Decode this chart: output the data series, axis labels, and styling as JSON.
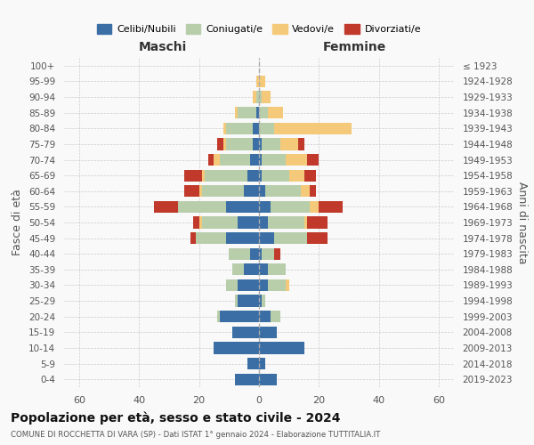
{
  "age_groups": [
    "0-4",
    "5-9",
    "10-14",
    "15-19",
    "20-24",
    "25-29",
    "30-34",
    "35-39",
    "40-44",
    "45-49",
    "50-54",
    "55-59",
    "60-64",
    "65-69",
    "70-74",
    "75-79",
    "80-84",
    "85-89",
    "90-94",
    "95-99",
    "100+"
  ],
  "birth_years": [
    "2019-2023",
    "2014-2018",
    "2009-2013",
    "2004-2008",
    "1999-2003",
    "1994-1998",
    "1989-1993",
    "1984-1988",
    "1979-1983",
    "1974-1978",
    "1969-1973",
    "1964-1968",
    "1959-1963",
    "1954-1958",
    "1949-1953",
    "1944-1948",
    "1939-1943",
    "1934-1938",
    "1929-1933",
    "1924-1928",
    "≤ 1923"
  ],
  "colors": {
    "celibe": "#3a6ea5",
    "coniugato": "#b8ceaa",
    "vedovo": "#f5c97a",
    "divorziato": "#c0392b"
  },
  "male": {
    "celibe": [
      8,
      4,
      15,
      9,
      13,
      7,
      7,
      5,
      3,
      11,
      7,
      11,
      5,
      4,
      3,
      2,
      2,
      1,
      0,
      0,
      0
    ],
    "coniugato": [
      0,
      0,
      0,
      0,
      1,
      1,
      4,
      4,
      7,
      10,
      12,
      16,
      14,
      14,
      10,
      9,
      9,
      6,
      1,
      0,
      0
    ],
    "vedovo": [
      0,
      0,
      0,
      0,
      0,
      0,
      0,
      0,
      0,
      0,
      1,
      0,
      1,
      1,
      2,
      1,
      1,
      1,
      1,
      1,
      0
    ],
    "divorziato": [
      0,
      0,
      0,
      0,
      0,
      0,
      0,
      0,
      0,
      2,
      2,
      8,
      5,
      6,
      2,
      2,
      0,
      0,
      0,
      0,
      0
    ]
  },
  "female": {
    "nubile": [
      6,
      2,
      15,
      6,
      4,
      1,
      3,
      3,
      1,
      5,
      3,
      4,
      2,
      1,
      1,
      1,
      0,
      0,
      0,
      0,
      0
    ],
    "coniugata": [
      0,
      0,
      0,
      0,
      3,
      1,
      6,
      6,
      4,
      11,
      12,
      13,
      12,
      9,
      8,
      6,
      5,
      3,
      1,
      0,
      0
    ],
    "vedova": [
      0,
      0,
      0,
      0,
      0,
      0,
      1,
      0,
      0,
      0,
      1,
      3,
      3,
      5,
      7,
      6,
      26,
      5,
      3,
      2,
      0
    ],
    "divorziata": [
      0,
      0,
      0,
      0,
      0,
      0,
      0,
      0,
      2,
      7,
      7,
      8,
      2,
      4,
      4,
      2,
      0,
      0,
      0,
      0,
      0
    ]
  },
  "xlim": 65,
  "title": "Popolazione per età, sesso e stato civile - 2024",
  "subtitle": "COMUNE DI ROCCHETTA DI VARA (SP) - Dati ISTAT 1° gennaio 2024 - Elaborazione TUTTITALIA.IT",
  "xlabel_left": "Maschi",
  "xlabel_right": "Femmine",
  "ylabel_left": "Fasce di età",
  "ylabel_right": "Anni di nascita",
  "legend_labels": [
    "Celibi/Nubili",
    "Coniugati/e",
    "Vedovi/e",
    "Divorziati/e"
  ],
  "background_color": "#f9f9f9"
}
